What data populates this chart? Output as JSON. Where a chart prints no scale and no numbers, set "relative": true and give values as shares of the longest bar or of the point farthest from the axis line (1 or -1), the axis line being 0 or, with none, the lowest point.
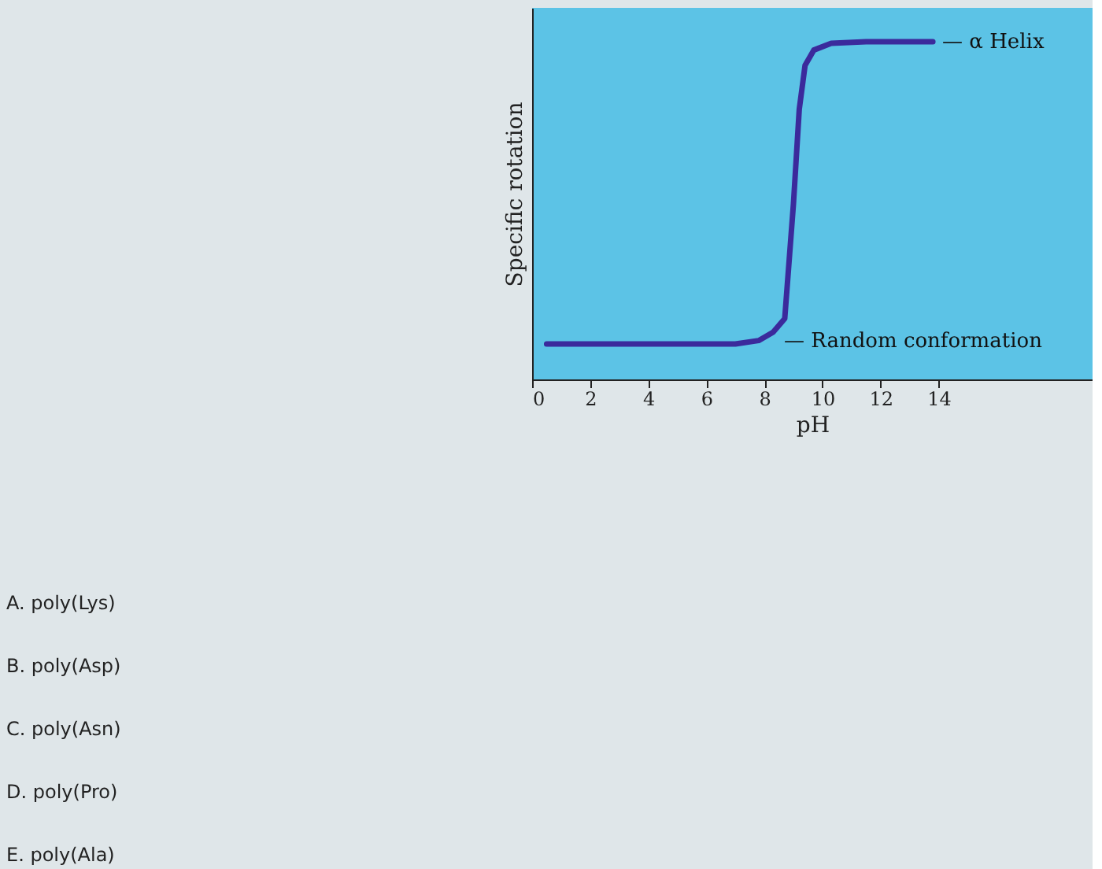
{
  "chart_data": {
    "type": "line",
    "relative": true,
    "xlabel": "pH",
    "ylabel": "Specific rotation",
    "x": [
      0.5,
      7.0,
      7.8,
      8.3,
      8.7,
      9.0,
      9.2,
      9.4,
      9.7,
      10.3,
      11.5,
      13.8
    ],
    "series": [
      {
        "color": "#3b2a9c",
        "values": [
          0.105,
          0.105,
          0.115,
          0.14,
          0.18,
          0.52,
          0.8,
          0.93,
          0.975,
          0.995,
          1.0,
          1.0
        ]
      }
    ],
    "xlim": [
      0,
      19.3
    ],
    "xticks": [
      0,
      2,
      4,
      6,
      8,
      10,
      12,
      14
    ],
    "grid": false,
    "marker": "none",
    "line_style": "solid",
    "annotations": [
      {
        "text": "— α Helix",
        "x": 13.8,
        "y": 1.0
      },
      "— Random conformation",
      "A. poly(Lys)",
      "B. poly(Asp)",
      "C. poly(Asn)",
      "D. poly(Pro)",
      "E. poly(Ala)"
    ]
  }
}
